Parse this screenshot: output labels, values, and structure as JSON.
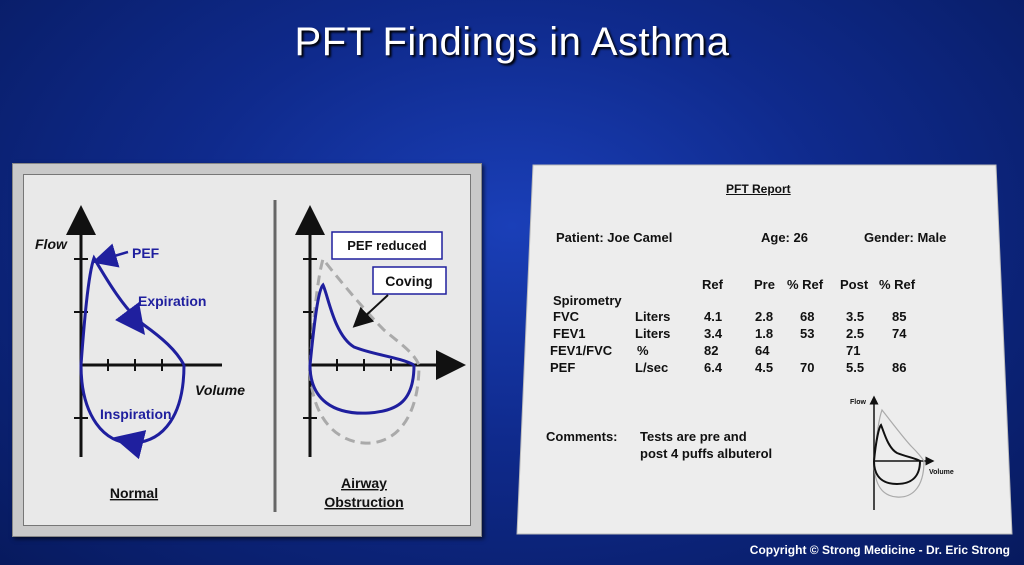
{
  "title": "PFT Findings in Asthma",
  "copyright": "Copyright © Strong Medicine - Dr. Eric Strong",
  "colors": {
    "curve": "#1f1f9e",
    "dashed": "#aaaaaa",
    "background": "#0f2a8c"
  },
  "normal_diagram": {
    "flow_label": "Flow",
    "volume_label": "Volume",
    "pef_label": "PEF",
    "expiration_label": "Expiration",
    "inspiration_label": "Inspiration",
    "caption": "Normal"
  },
  "obstruction_diagram": {
    "pef_reduced_label": "PEF reduced",
    "coving_label": "Coving",
    "caption_line1": "Airway",
    "caption_line2": "Obstruction"
  },
  "report": {
    "heading": "PFT Report",
    "patient": "Patient: Joe Camel",
    "age": "Age: 26",
    "gender": "Gender: Male",
    "section": "Spirometry",
    "columns": [
      "Ref",
      "Pre",
      "% Ref",
      "Post",
      "% Ref"
    ],
    "rows": [
      {
        "name": "FVC",
        "unit": "Liters",
        "ref": "4.1",
        "pre": "2.8",
        "pre_pct": "68",
        "post": "3.5",
        "post_pct": "85"
      },
      {
        "name": "FEV1",
        "unit": "Liters",
        "ref": "3.4",
        "pre": "1.8",
        "pre_pct": "53",
        "post": "2.5",
        "post_pct": "74"
      },
      {
        "name": "FEV1/FVC",
        "unit": "%",
        "ref": "82",
        "pre": "64",
        "pre_pct": "",
        "post": "71",
        "post_pct": ""
      },
      {
        "name": "PEF",
        "unit": "L/sec",
        "ref": "6.4",
        "pre": "4.5",
        "pre_pct": "70",
        "post": "5.5",
        "post_pct": "86"
      }
    ],
    "comments_label": "Comments:",
    "comments_line1": "Tests are pre and",
    "comments_line2": "post 4 puffs albuterol",
    "mini_flow_label": "Flow",
    "mini_volume_label": "Volume"
  }
}
